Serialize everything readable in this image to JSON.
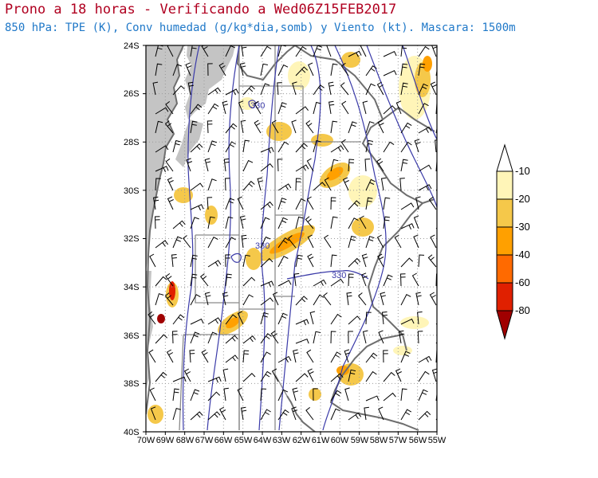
{
  "header": {
    "title": "Prono a 18 horas - Verificando a Wed06Z15FEB2017",
    "subtitle": "850 hPa: TPE (K), Conv humedad (g/kg*dia,somb) y Viento (kt). Mascara: 1500m"
  },
  "map": {
    "lat_labels": [
      "24S",
      "26S",
      "28S",
      "30S",
      "32S",
      "34S",
      "36S",
      "38S",
      "40S"
    ],
    "lon_labels": [
      "70W",
      "69W",
      "68W",
      "67W",
      "66W",
      "65W",
      "64W",
      "63W",
      "62W",
      "61W",
      "60W",
      "59W",
      "58W",
      "57W",
      "56W",
      "55W"
    ],
    "contour_labels": [
      "330",
      "330",
      "330"
    ],
    "mask_color": "#c4c4c4",
    "contour_color": "#3a3aa8"
  },
  "colorbar": {
    "labels": [
      "-10",
      "-20",
      "-30",
      "-40",
      "-60",
      "-80"
    ],
    "colors": [
      "#fff5b8",
      "#f5c84a",
      "#ffa000",
      "#ff6a00",
      "#e02000",
      "#a00000"
    ],
    "top_color": "#ffffff"
  }
}
